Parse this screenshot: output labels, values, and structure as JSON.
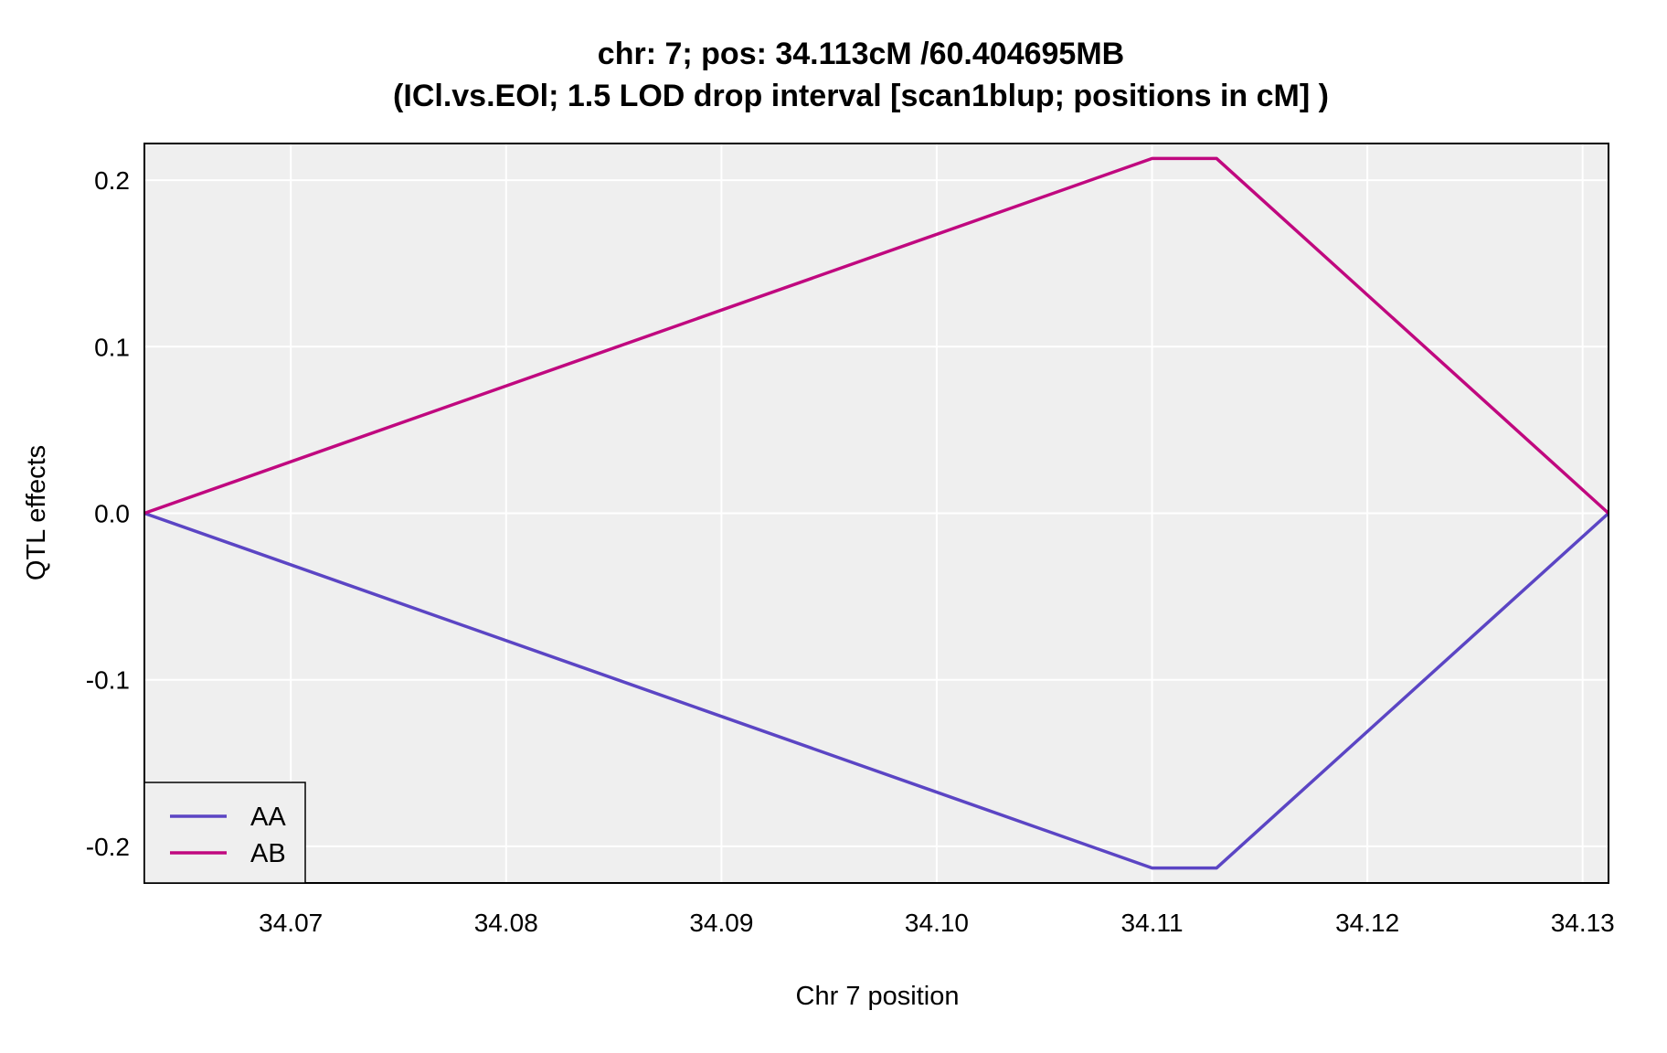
{
  "chart_data": {
    "type": "line",
    "title": "chr: 7; pos: 34.113cM /60.404695MB",
    "subtitle": "(ICl.vs.EOl; 1.5 LOD drop interval [scan1blup; positions in cM] )",
    "xlabel": "Chr 7 position",
    "ylabel": "QTL effects",
    "xlim": [
      34.0632,
      34.1312
    ],
    "ylim": [
      -0.222,
      0.222
    ],
    "x_ticks": [
      34.07,
      34.08,
      34.09,
      34.1,
      34.11,
      34.12,
      34.13
    ],
    "x_tick_labels": [
      "34.07",
      "34.08",
      "34.09",
      "34.10",
      "34.11",
      "34.12",
      "34.13"
    ],
    "y_ticks": [
      -0.2,
      -0.1,
      0.0,
      0.1,
      0.2
    ],
    "y_tick_labels": [
      "-0.2",
      "-0.1",
      "0.0",
      "0.1",
      "0.2"
    ],
    "grid": true,
    "legend_position": "bottom-left",
    "series": [
      {
        "name": "AA",
        "color": "#5b45c4",
        "x": [
          34.0632,
          34.11,
          34.113,
          34.1312
        ],
        "y": [
          0.0,
          -0.213,
          -0.213,
          0.0
        ]
      },
      {
        "name": "AB",
        "color": "#c0087f",
        "x": [
          34.0632,
          34.11,
          34.113,
          34.1312
        ],
        "y": [
          0.0,
          0.213,
          0.213,
          0.0
        ]
      }
    ],
    "colors": {
      "panel_background": "#efefef",
      "grid": "#ffffff",
      "frame": "#000000"
    }
  }
}
